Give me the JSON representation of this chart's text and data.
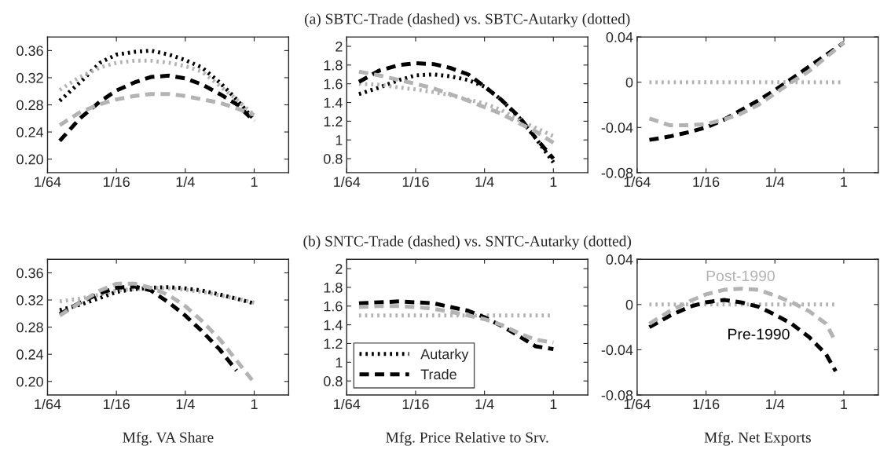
{
  "chart_data": [
    {
      "type": "line",
      "log": "x",
      "xlim": [
        0.015625,
        2
      ],
      "xticks": [
        {
          "value": 0.015625,
          "label": "1/64"
        },
        {
          "value": 0.0625,
          "label": "1/16"
        },
        {
          "value": 0.25,
          "label": "1/4"
        },
        1
      ],
      "ylim": [
        0.18,
        0.38
      ],
      "yticks": [
        {
          "value": 0.2,
          "label": "0.20"
        },
        0.24,
        0.28,
        0.32,
        0.36
      ],
      "x": [
        0.02,
        0.03,
        0.045,
        0.0625,
        0.09,
        0.125,
        0.18,
        0.25,
        0.35,
        0.5,
        0.7,
        1.0
      ],
      "series": [
        {
          "color": "#000000",
          "line_style": "dotted",
          "values": [
            0.286,
            0.313,
            0.342,
            0.354,
            0.358,
            0.36,
            0.354,
            0.346,
            0.335,
            0.313,
            0.288,
            0.258
          ]
        },
        {
          "color": "#b3b3b3",
          "line_style": "dotted",
          "values": [
            0.302,
            0.321,
            0.335,
            0.342,
            0.345,
            0.345,
            0.342,
            0.337,
            0.329,
            0.308,
            0.288,
            0.265
          ]
        },
        {
          "color": "#000000",
          "line_style": "dashed",
          "values": [
            0.227,
            0.26,
            0.285,
            0.301,
            0.313,
            0.321,
            0.323,
            0.319,
            0.31,
            0.296,
            0.281,
            0.256
          ]
        },
        {
          "color": "#b3b3b3",
          "line_style": "dashed",
          "values": [
            0.25,
            0.269,
            0.281,
            0.288,
            0.293,
            0.296,
            0.296,
            0.293,
            0.288,
            0.283,
            0.275,
            0.265
          ]
        }
      ]
    },
    {
      "type": "line",
      "log": "x",
      "title": "(a) SBTC-Trade (dashed) vs. SBTC-Autarky (dotted)",
      "xlim": [
        0.015625,
        2
      ],
      "xticks": [
        {
          "value": 0.015625,
          "label": "1/64"
        },
        {
          "value": 0.0625,
          "label": "1/16"
        },
        {
          "value": 0.25,
          "label": "1/4"
        },
        1
      ],
      "ylim": [
        0.65,
        2.1
      ],
      "yticks": [
        0.8,
        1,
        1.2,
        1.4,
        1.6,
        1.8,
        2
      ],
      "x": [
        0.02,
        0.03,
        0.045,
        0.0625,
        0.09,
        0.125,
        0.18,
        0.25,
        0.35,
        0.5,
        0.7,
        1.0
      ],
      "series": [
        {
          "color": "#000000",
          "line_style": "dotted",
          "values": [
            1.49,
            1.56,
            1.64,
            1.69,
            1.7,
            1.68,
            1.64,
            1.57,
            1.43,
            1.24,
            1.02,
            0.76
          ]
        },
        {
          "color": "#b3b3b3",
          "line_style": "dotted",
          "values": [
            1.6,
            1.59,
            1.56,
            1.54,
            1.51,
            1.48,
            1.43,
            1.39,
            1.32,
            1.21,
            1.13,
            1.04
          ]
        },
        {
          "color": "#000000",
          "line_style": "dashed",
          "values": [
            1.62,
            1.74,
            1.8,
            1.82,
            1.81,
            1.77,
            1.7,
            1.57,
            1.43,
            1.25,
            1.02,
            0.8
          ]
        },
        {
          "color": "#b3b3b3",
          "line_style": "dashed",
          "values": [
            1.73,
            1.69,
            1.64,
            1.6,
            1.55,
            1.49,
            1.42,
            1.35,
            1.28,
            1.18,
            1.09,
            0.97
          ]
        }
      ]
    },
    {
      "type": "line",
      "log": "x",
      "xlim": [
        0.015625,
        2
      ],
      "xticks": [
        {
          "value": 0.015625,
          "label": "1/64"
        },
        {
          "value": 0.0625,
          "label": "1/16"
        },
        {
          "value": 0.25,
          "label": "1/4"
        },
        1
      ],
      "ylim": [
        -0.08,
        0.04
      ],
      "yticks": [
        -0.08,
        -0.04,
        0,
        0.04
      ],
      "x": [
        0.02,
        0.03,
        0.045,
        0.0625,
        0.09,
        0.125,
        0.18,
        0.25,
        0.35,
        0.5,
        0.7,
        1.0
      ],
      "series": [
        {
          "color": "#b3b3b3",
          "line_style": "dotted",
          "values": [
            0,
            0,
            0,
            0,
            0,
            0,
            0,
            0,
            0,
            0,
            0,
            0
          ]
        },
        {
          "color": "#000000",
          "line_style": "dashed",
          "values": [
            -0.051,
            -0.048,
            -0.044,
            -0.04,
            -0.033,
            -0.025,
            -0.016,
            -0.007,
            0.003,
            0.014,
            0.024,
            0.035
          ]
        },
        {
          "color": "#b3b3b3",
          "line_style": "dashed",
          "values": [
            -0.032,
            -0.038,
            -0.038,
            -0.037,
            -0.033,
            -0.028,
            -0.02,
            -0.01,
            0,
            0.01,
            0.022,
            0.035
          ]
        }
      ]
    },
    {
      "type": "line",
      "log": "x",
      "xlabel": "Mfg. VA Share",
      "xlim": [
        0.015625,
        2
      ],
      "xticks": [
        {
          "value": 0.015625,
          "label": "1/64"
        },
        {
          "value": 0.0625,
          "label": "1/16"
        },
        {
          "value": 0.25,
          "label": "1/4"
        },
        1
      ],
      "ylim": [
        0.18,
        0.38
      ],
      "yticks": [
        {
          "value": 0.2,
          "label": "0.20"
        },
        0.24,
        0.28,
        0.32,
        0.36
      ],
      "x": [
        0.02,
        0.03,
        0.045,
        0.0625,
        0.09,
        0.125,
        0.18,
        0.25,
        0.35,
        0.5,
        0.7,
        1.0
      ],
      "series": [
        {
          "color": "#000000",
          "line_style": "dotted",
          "values": [
            0.305,
            0.313,
            0.323,
            0.332,
            0.336,
            0.338,
            0.339,
            0.337,
            0.334,
            0.328,
            0.322,
            0.315
          ]
        },
        {
          "color": "#b3b3b3",
          "line_style": "dotted",
          "values": [
            0.318,
            0.322,
            0.328,
            0.334,
            0.336,
            0.338,
            0.337,
            0.335,
            0.332,
            0.327,
            0.322,
            0.316
          ]
        },
        {
          "color": "#000000",
          "line_style": "dashed",
          "values": [
            0.299,
            0.316,
            0.33,
            0.338,
            0.34,
            0.334,
            0.316,
            0.297,
            0.274,
            0.247,
            0.216,
            null
          ]
        },
        {
          "color": "#b3b3b3",
          "line_style": "dashed",
          "values": [
            0.297,
            0.316,
            0.334,
            0.344,
            0.344,
            0.338,
            0.327,
            0.311,
            0.289,
            0.262,
            0.231,
            0.198
          ]
        }
      ]
    },
    {
      "type": "line",
      "log": "x",
      "title": "(b) SNTC-Trade (dashed) vs. SNTC-Autarky (dotted)",
      "xlabel": "Mfg. Price Relative to Srv.",
      "legend": "bottom left",
      "xlim": [
        0.015625,
        2
      ],
      "xticks": [
        {
          "value": 0.015625,
          "label": "1/64"
        },
        {
          "value": 0.0625,
          "label": "1/16"
        },
        {
          "value": 0.25,
          "label": "1/4"
        },
        1
      ],
      "ylim": [
        0.65,
        2.1
      ],
      "yticks": [
        0.8,
        1,
        1.2,
        1.4,
        1.6,
        1.8,
        2
      ],
      "x": [
        0.02,
        0.03,
        0.045,
        0.0625,
        0.09,
        0.125,
        0.18,
        0.25,
        0.35,
        0.5,
        0.7,
        1.0
      ],
      "series": [
        {
          "name": "Autarky",
          "color": "#000000",
          "line_style": "dotted",
          "values": [
            null,
            null,
            null,
            null,
            null,
            null,
            null,
            null,
            null,
            null,
            null,
            null
          ]
        },
        {
          "color": "#b3b3b3",
          "line_style": "dotted",
          "values": [
            1.5,
            1.5,
            1.5,
            1.5,
            1.5,
            1.5,
            1.5,
            1.5,
            1.5,
            1.5,
            1.5,
            1.5
          ]
        },
        {
          "name": "Trade",
          "color": "#000000",
          "line_style": "dashed",
          "values": [
            1.63,
            1.64,
            1.65,
            1.64,
            1.63,
            1.59,
            1.55,
            1.48,
            1.39,
            1.28,
            1.17,
            1.14
          ]
        },
        {
          "color": "#b3b3b3",
          "line_style": "dashed",
          "values": [
            1.59,
            1.6,
            1.6,
            1.59,
            1.57,
            1.54,
            1.5,
            1.46,
            1.4,
            1.31,
            1.24,
            1.21
          ]
        }
      ]
    },
    {
      "type": "line",
      "log": "x",
      "xlabel": "Mfg. Net Exports",
      "xlim": [
        0.015625,
        2
      ],
      "xticks": [
        {
          "value": 0.015625,
          "label": "1/64"
        },
        {
          "value": 0.0625,
          "label": "1/16"
        },
        {
          "value": 0.25,
          "label": "1/4"
        },
        1
      ],
      "ylim": [
        -0.08,
        0.04
      ],
      "yticks": [
        -0.08,
        -0.04,
        0,
        0.04
      ],
      "x": [
        0.02,
        0.03,
        0.045,
        0.0625,
        0.09,
        0.125,
        0.18,
        0.25,
        0.35,
        0.5,
        0.7,
        0.85
      ],
      "series": [
        {
          "color": "#b3b3b3",
          "line_style": "dotted",
          "values": [
            0,
            0,
            0,
            0,
            0,
            0,
            0,
            0,
            0,
            0,
            0,
            0
          ]
        },
        {
          "name": "Pre-1990",
          "color": "#000000",
          "line_style": "dashed",
          "values": [
            -0.02,
            -0.01,
            -0.002,
            0.002,
            0.004,
            0.002,
            -0.002,
            -0.009,
            -0.017,
            -0.029,
            -0.044,
            -0.059
          ]
        },
        {
          "name": "Post-1990",
          "color": "#b3b3b3",
          "line_style": "dashed",
          "values": [
            -0.017,
            -0.006,
            0.003,
            0.009,
            0.013,
            0.014,
            0.013,
            0.008,
            0.002,
            -0.006,
            -0.017,
            -0.033
          ]
        }
      ]
    }
  ]
}
